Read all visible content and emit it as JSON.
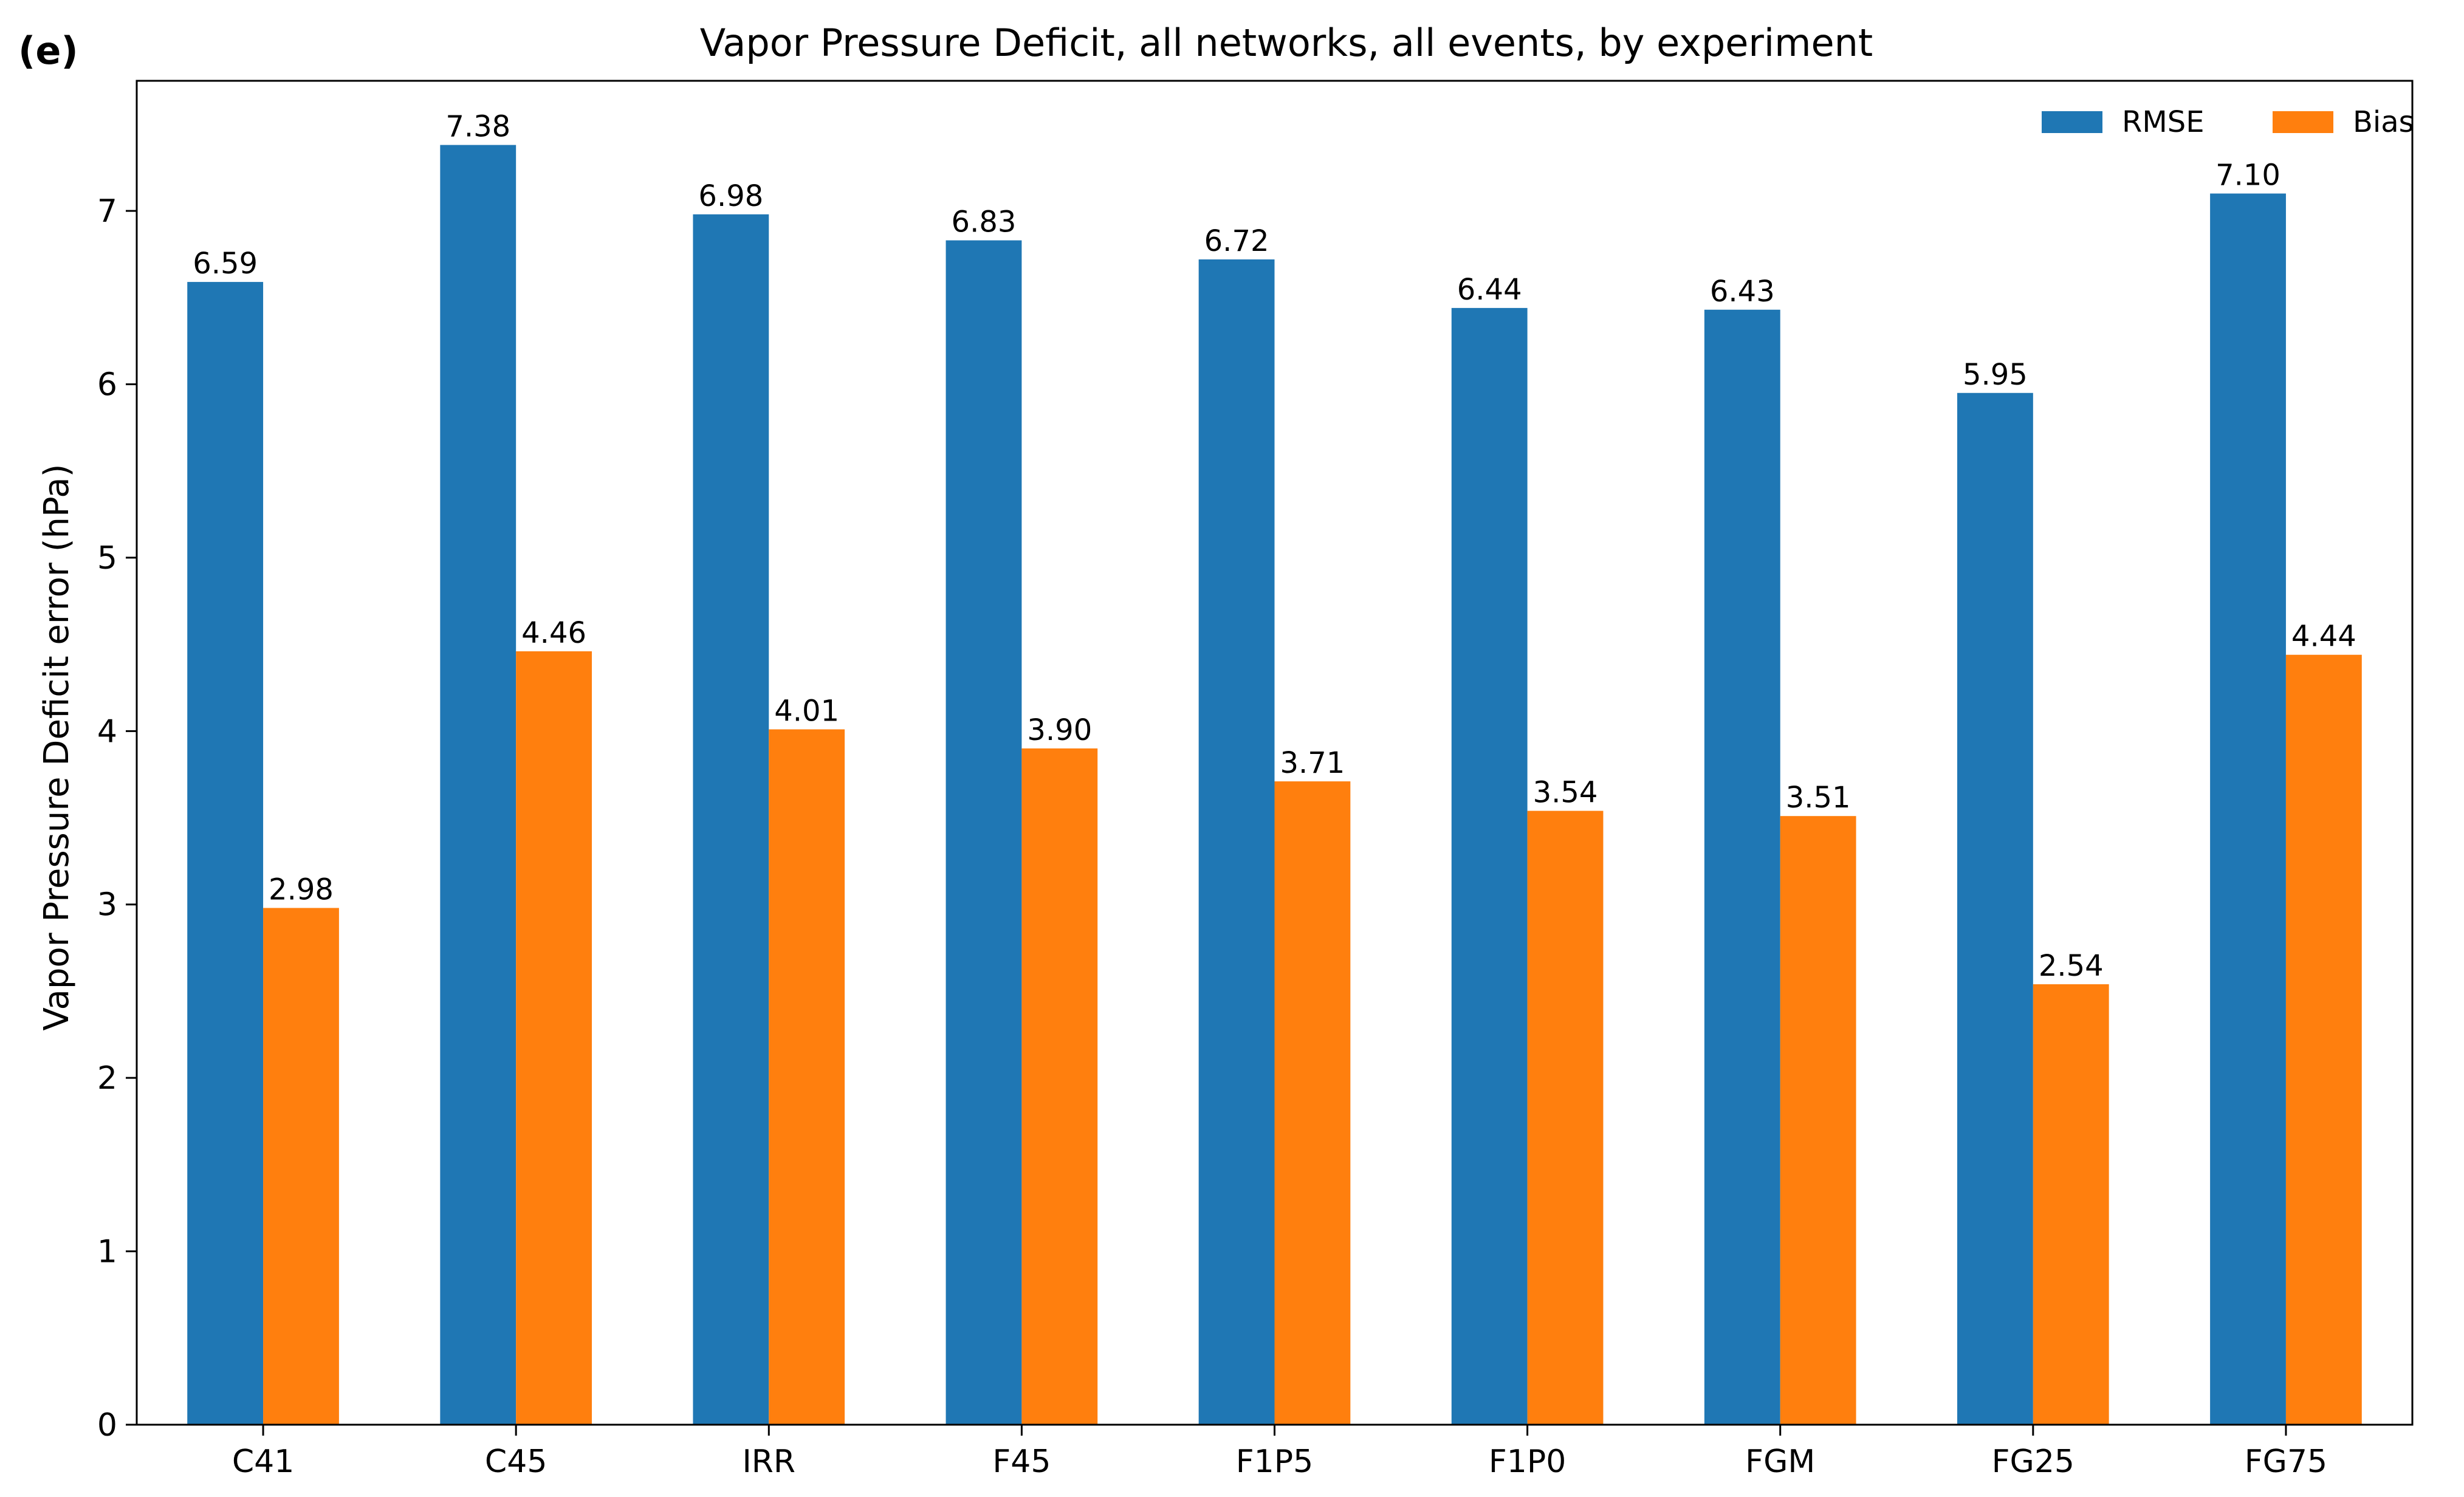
{
  "panel_label": "(e)",
  "colors": {
    "rmse": "#1f77b4",
    "bias": "#ff7f0e",
    "axis": "#000000"
  },
  "chart_data": {
    "type": "bar",
    "title": "Vapor Pressure Deficit, all networks, all events, by experiment",
    "xlabel": "",
    "ylabel": "Vapor Pressure Deficit error (hPa)",
    "categories": [
      "C41",
      "C45",
      "IRR",
      "F45",
      "F1P5",
      "F1P0",
      "FGM",
      "FG25",
      "FG75"
    ],
    "series": [
      {
        "name": "RMSE",
        "values": [
          6.59,
          7.38,
          6.98,
          6.83,
          6.72,
          6.44,
          6.43,
          5.95,
          7.1
        ],
        "labels": [
          "6.59",
          "7.38",
          "6.98",
          "6.83",
          "6.72",
          "6.44",
          "6.43",
          "5.95",
          "7.10"
        ]
      },
      {
        "name": "Bias",
        "values": [
          2.98,
          4.46,
          4.01,
          3.9,
          3.71,
          3.54,
          3.51,
          2.54,
          4.44
        ],
        "labels": [
          "2.98",
          "4.46",
          "4.01",
          "3.90",
          "3.71",
          "3.54",
          "3.51",
          "2.54",
          "4.44"
        ]
      }
    ],
    "ylim": [
      0,
      7.75
    ],
    "yticks": [
      0,
      1,
      2,
      3,
      4,
      5,
      6,
      7
    ],
    "grid": false,
    "legend_position": "top-right"
  }
}
